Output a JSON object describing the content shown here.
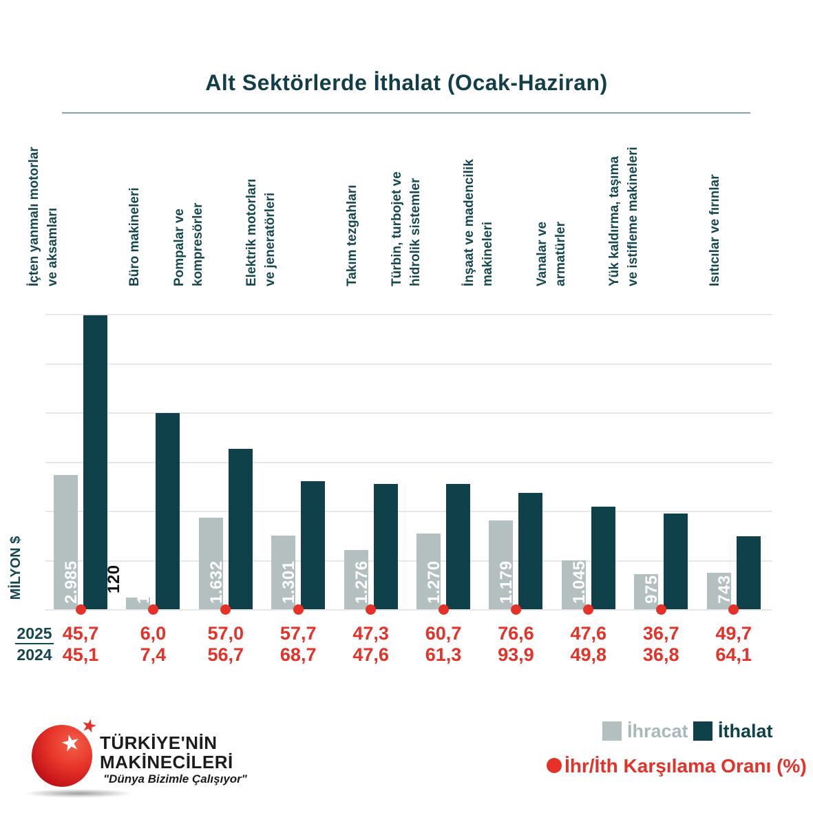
{
  "title": "Alt Sektörlerde İthalat (Ocak-Haziran)",
  "y_axis_label": "MİLYON $",
  "colors": {
    "ihracat_bar": "#b4c0c0",
    "ithalat_bar": "#0e4149",
    "ratio_red": "#e63128",
    "title_teal": "#123f47",
    "gridline": "#e7e7e7"
  },
  "ratio_rows": {
    "row1_label": "2025",
    "row2_label": "2024"
  },
  "legend": {
    "ihracat_label": "İhracat",
    "ithalat_label": "İthalat",
    "ratio_label": "İhr/İth Karşılama Oranı (%)"
  },
  "logo": {
    "line1": "TÜRKİYE'NİN",
    "line2": "MAKİNECİLERİ",
    "tagline": "\"Dünya Bizimle Çalışıyor\"",
    "star_icon": "star-icon"
  },
  "chart_data": {
    "type": "bar",
    "title": "Alt Sektörlerde İthalat (Ocak-Haziran)",
    "ylabel": "MİLYON $",
    "ylim": [
      0,
      3000
    ],
    "gridline_step": 500,
    "grid": true,
    "legend_position": "bottom-right",
    "categories": [
      [
        "İçten yanmalı motorlar",
        "ve aksamları"
      ],
      [
        "Büro makineleri"
      ],
      [
        "Pompalar ve",
        "kompresörler"
      ],
      [
        "Elektrik motorları",
        "ve jeneratörleri"
      ],
      [
        "Takım tezgahları"
      ],
      [
        "Türbin, turbojet ve",
        "hidrolik sistemler"
      ],
      [
        "İnşaat ve madencilik",
        "makineleri"
      ],
      [
        "Vanalar ve",
        "armatürler"
      ],
      [
        "Yük kaldırma, taşıma",
        "ve istifleme makineleri"
      ],
      [
        "Isıtıcılar ve fırınlar"
      ]
    ],
    "series": [
      {
        "name": "İhracat",
        "values": [
          1363,
          120,
          930,
          751,
          603,
          770,
          903,
          498,
          358,
          369
        ],
        "labels": [
          "1.363",
          "120",
          "930",
          "751",
          "603",
          "770",
          "903",
          "498",
          "358",
          "369"
        ]
      },
      {
        "name": "İthalat",
        "values": [
          2985,
          1996,
          1632,
          1301,
          1276,
          1270,
          1179,
          1045,
          975,
          743
        ],
        "labels": [
          "2.985",
          "1.996",
          "1.632",
          "1.301",
          "1.276",
          "1.270",
          "1.179",
          "1.045",
          "975",
          "743"
        ]
      }
    ],
    "ratio_series_name": "İhr/İth Karşılama Oranı (%)",
    "ratio_2025": [
      "45,7",
      "6,0",
      "57,0",
      "57,7",
      "47,3",
      "60,7",
      "76,6",
      "47,6",
      "36,7",
      "49,7"
    ],
    "ratio_2024": [
      "45,1",
      "7,4",
      "56,7",
      "68,7",
      "47,6",
      "61,3",
      "93,9",
      "49,8",
      "36,8",
      "64,1"
    ]
  }
}
